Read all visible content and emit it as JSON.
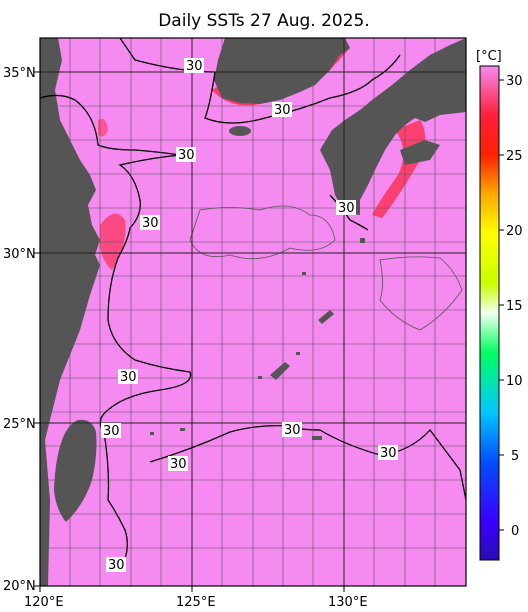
{
  "title": "Daily SSTs 27 Aug. 2025.",
  "colorbar": {
    "unit": "[°C]",
    "ticks": [
      "30",
      "25",
      "20",
      "15",
      "10",
      "5",
      "0"
    ]
  },
  "axes": {
    "lat_labels": [
      "35°N",
      "30°N",
      "25°N",
      "20°N"
    ],
    "lon_labels": [
      "120°E",
      "125°E",
      "130°E"
    ]
  },
  "contour_labels": [
    "30",
    "30",
    "30",
    "30",
    "30",
    "30",
    "30",
    "30",
    "30",
    "30",
    "30"
  ],
  "colors": {
    "ocean": "#f58af0",
    "land": "#555555",
    "warm": "#ff1f3a",
    "grid": "#555555"
  }
}
